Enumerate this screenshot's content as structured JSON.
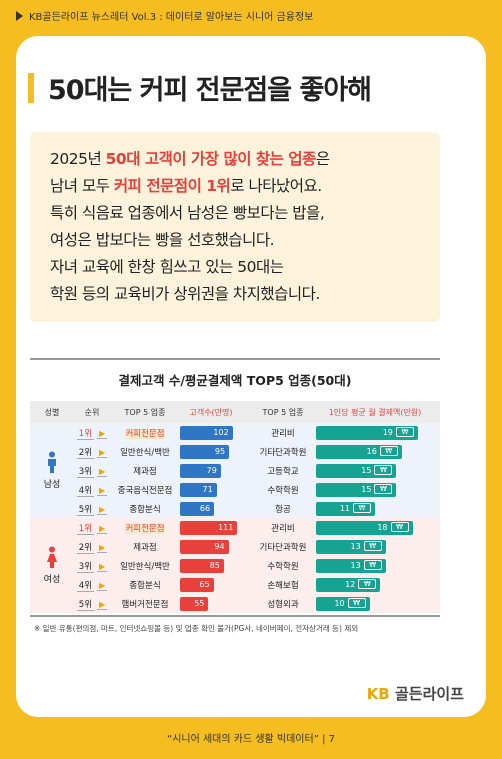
{
  "header": {
    "text": "KB골든라이프 뉴스레터 Vol.3 : 데이터로 알아보는 시니어 금융정보"
  },
  "title": "50대는 커피 전문점을 좋아해",
  "summary": {
    "l1a": "2025년 ",
    "l1b": "50대 고객이 가장 많이 찾는 업종",
    "l1c": "은",
    "l2a": "남녀 모두 ",
    "l2b": "커피 전문점이 1위",
    "l2c": "로 나타났어요.",
    "l3": "특히 식음료 업종에서 남성은 빵보다는 밥을,",
    "l4": "여성은 밥보다는 빵을 선호했습니다.",
    "l5": "자녀 교육에 한창 힘쓰고 있는 50대는",
    "l6": "학원 등의 교육비가 상위권을 차지했습니다."
  },
  "chart_data": {
    "type": "table",
    "title": "결제고객 수/평균결제액 TOP5 업종(50대)",
    "headers": {
      "gender": "성별",
      "rank": "순위",
      "top5a": "TOP 5 업종",
      "customers": "고객수(만명)",
      "top5b": "TOP 5 업종",
      "avg": "1인당 평균 월 결제액(만원)"
    },
    "groups": [
      {
        "gender": "남성",
        "rows": [
          {
            "rank": "1위",
            "cat1": "커피전문점",
            "customers": 102,
            "cat2": "관리비",
            "avg": 19
          },
          {
            "rank": "2위",
            "cat1": "일반한식/백반",
            "customers": 95,
            "cat2": "기타단과학원",
            "avg": 16
          },
          {
            "rank": "3위",
            "cat1": "제과점",
            "customers": 79,
            "cat2": "고등학교",
            "avg": 15
          },
          {
            "rank": "4위",
            "cat1": "중국음식전문점",
            "customers": 71,
            "cat2": "수학학원",
            "avg": 15
          },
          {
            "rank": "5위",
            "cat1": "종합분식",
            "customers": 66,
            "cat2": "항공",
            "avg": 11
          }
        ]
      },
      {
        "gender": "여성",
        "rows": [
          {
            "rank": "1위",
            "cat1": "커피전문점",
            "customers": 111,
            "cat2": "관리비",
            "avg": 18
          },
          {
            "rank": "2위",
            "cat1": "제과점",
            "customers": 94,
            "cat2": "기타단과학원",
            "avg": 13
          },
          {
            "rank": "3위",
            "cat1": "일반한식/백반",
            "customers": 85,
            "cat2": "수학학원",
            "avg": 13
          },
          {
            "rank": "4위",
            "cat1": "종합분식",
            "customers": 65,
            "cat2": "손해보험",
            "avg": 12
          },
          {
            "rank": "5위",
            "cat1": "햄버거전문점",
            "customers": 55,
            "cat2": "성형외과",
            "avg": 10
          }
        ]
      }
    ],
    "won_symbol": "₩",
    "footnote": "※ 일반 유통(편의점, 마트, 인터넷쇼핑몰 등) 및 업종 확인 불가(PG사, 네이버페이, 전자상거래 등) 제외"
  },
  "colors": {
    "male_bar": "#2f76c4",
    "female_bar": "#e8403a",
    "avg_bar": "#16a392",
    "accent": "#f5bd1f"
  },
  "logo": {
    "kb": "KB",
    "name": "골든라이프"
  },
  "footer": {
    "text": "“시니어 세대의 카드 생활 빅데이터”  |  7"
  }
}
